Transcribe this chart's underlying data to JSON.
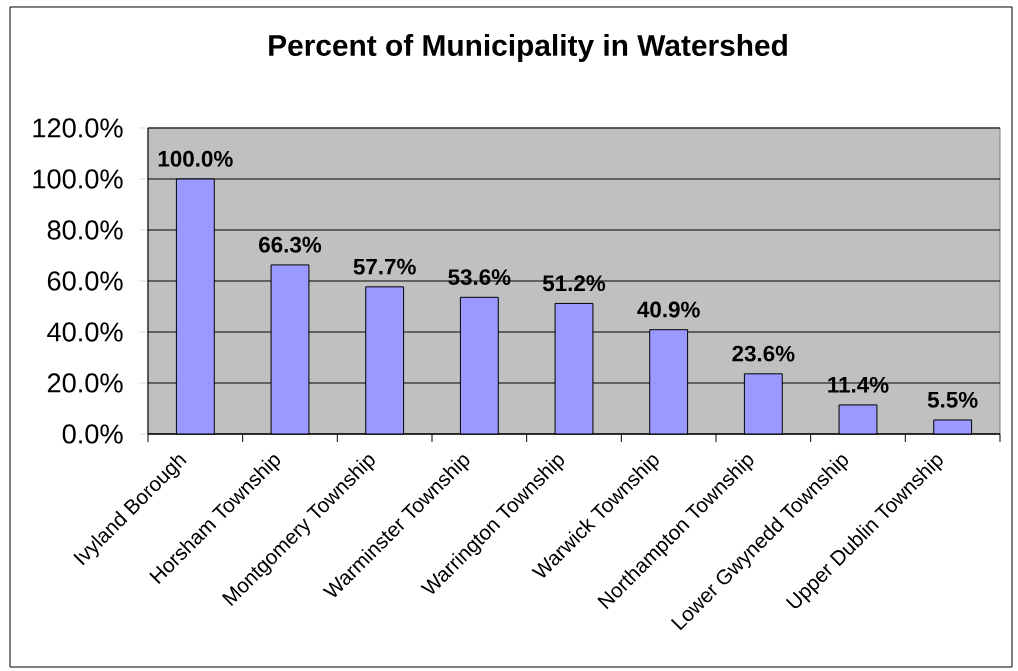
{
  "chart_data": {
    "type": "bar",
    "title": "Percent of Municipality in Watershed",
    "categories": [
      "Ivyland Borough",
      "Horsham Township",
      "Montgomery Township",
      "Warminster Township",
      "Warrington Township",
      "Warwick Township",
      "Northampton Township",
      "Lower Gwynedd Township",
      "Upper Dublin Township"
    ],
    "values": [
      100.0,
      66.3,
      57.7,
      53.6,
      51.2,
      40.9,
      23.6,
      11.4,
      5.5
    ],
    "value_labels": [
      "100.0%",
      "66.3%",
      "57.7%",
      "53.6%",
      "51.2%",
      "40.9%",
      "23.6%",
      "11.4%",
      "5.5%"
    ],
    "color": "#9999ff",
    "ylim": [
      0,
      120
    ],
    "yticks": [
      {
        "value": 0,
        "label": "0.0%"
      },
      {
        "value": 20,
        "label": "20.0%"
      },
      {
        "value": 40,
        "label": "40.0%"
      },
      {
        "value": 60,
        "label": "60.0%"
      },
      {
        "value": 80,
        "label": "80.0%"
      },
      {
        "value": 100,
        "label": "100.0%"
      },
      {
        "value": 120,
        "label": "120.0%"
      }
    ],
    "grid": "y"
  }
}
